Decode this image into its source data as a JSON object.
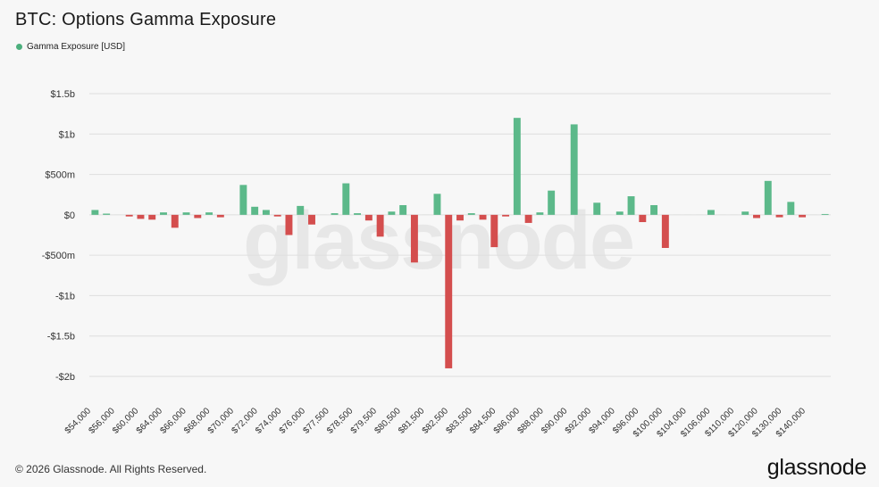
{
  "header": {
    "title": "BTC: Options Gamma Exposure",
    "legend_label": "Gamma Exposure [USD]"
  },
  "colors": {
    "legend_dot": "#4caf7d",
    "positive": "#5cb98a",
    "negative": "#d44e4e",
    "grid": "#dedede",
    "axis_text": "#333333"
  },
  "watermark": {
    "text": "glassnode"
  },
  "footer": {
    "copyright": "© 2026 Glassnode. All Rights Reserved.",
    "brand": "glassnode"
  },
  "chart_data": {
    "type": "bar",
    "title": "BTC: Options Gamma Exposure",
    "ylim": [
      -2000,
      1500
    ],
    "y_unit": "millions USD",
    "y_ticks": [
      {
        "value": 1500,
        "label": "$1.5b"
      },
      {
        "value": 1000,
        "label": "$1b"
      },
      {
        "value": 500,
        "label": "$500m"
      },
      {
        "value": 0,
        "label": "$0"
      },
      {
        "value": -500,
        "label": "-$500m"
      },
      {
        "value": -1000,
        "label": "-$1b"
      },
      {
        "value": -1500,
        "label": "-$1.5b"
      },
      {
        "value": -2000,
        "label": "-$2b"
      }
    ],
    "x_tick_labels": [
      "$54,000",
      "$56,000",
      "$60,000",
      "$64,000",
      "$66,000",
      "$68,000",
      "$70,000",
      "$72,000",
      "$74,000",
      "$76,000",
      "$77,500",
      "$78,500",
      "$79,500",
      "$80,500",
      "$81,500",
      "$82,500",
      "$83,500",
      "$84,500",
      "$86,000",
      "$88,000",
      "$90,000",
      "$92,000",
      "$94,000",
      "$96,000",
      "$100,000",
      "$104,000",
      "$106,000",
      "$110,000",
      "$120,000",
      "$130,000",
      "$140,000"
    ],
    "grid": true,
    "legend_position": "top-left",
    "series": [
      {
        "name": "Gamma Exposure [USD]",
        "values": [
          60,
          15,
          0,
          -20,
          -50,
          -60,
          30,
          -160,
          30,
          -40,
          30,
          -30,
          0,
          370,
          100,
          60,
          -20,
          -250,
          110,
          -120,
          0,
          20,
          390,
          20,
          -70,
          -270,
          40,
          120,
          -590,
          0,
          260,
          -1900,
          -70,
          20,
          -60,
          -400,
          -20,
          1200,
          -100,
          30,
          300,
          0,
          1120,
          0,
          150,
          0,
          40,
          230,
          -90,
          120,
          -410,
          0,
          0,
          0,
          60,
          0,
          0,
          40,
          -40,
          420,
          -30,
          160,
          -30,
          0,
          10
        ]
      }
    ]
  }
}
